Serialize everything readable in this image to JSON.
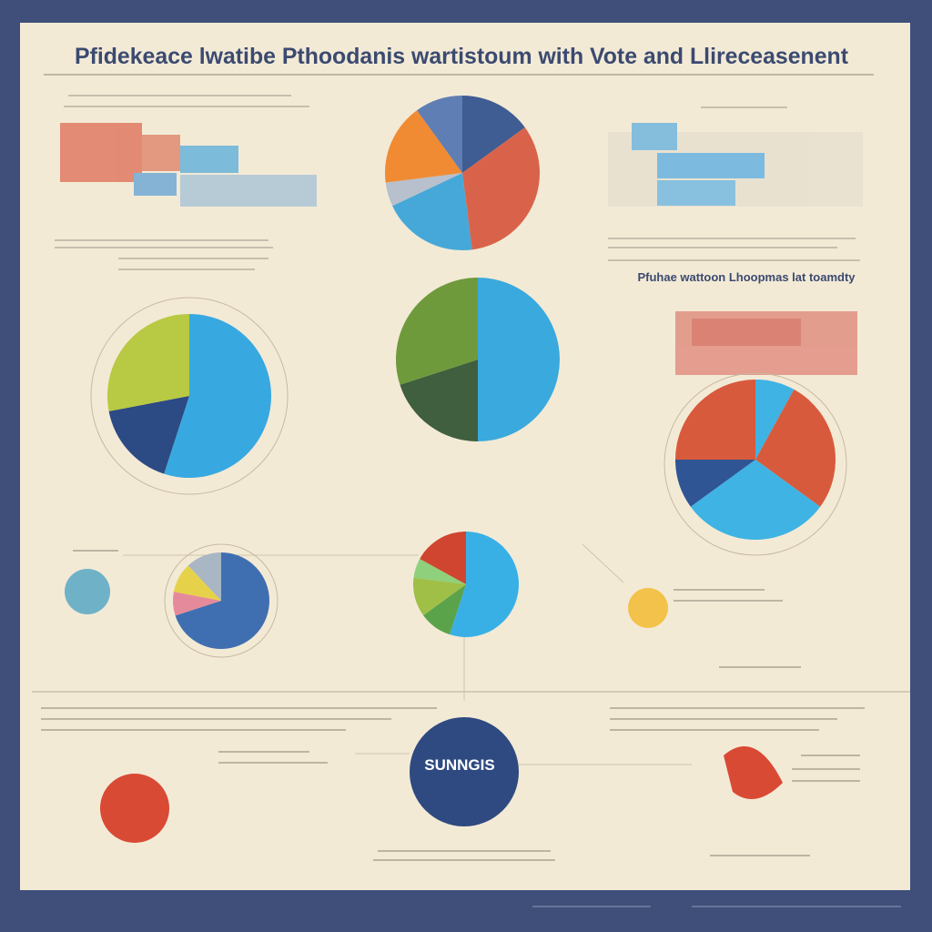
{
  "header": {
    "title": "Pfidekeace lwatibe Pthoodanis wartistoum with Vote and Llireceasenent"
  },
  "subheading": "Pfuhae wattoon Lhoopmas lat toamdty",
  "badge": "SUNNGIS",
  "pies": [
    {
      "values": [
        15,
        33,
        20,
        5,
        17,
        10
      ],
      "colors": [
        "#3f5c93",
        "#d9634a",
        "#45a8d8",
        "#b7c0cc",
        "#f08b33",
        "#5f7eb3"
      ]
    },
    {
      "values": [
        55,
        17,
        28
      ],
      "colors": [
        "#38a9e0",
        "#2c4a84",
        "#b8c943"
      ]
    },
    {
      "values": [
        50,
        20,
        30
      ],
      "colors": [
        "#3aa9dd",
        "#3f5f3e",
        "#6f9a3c"
      ]
    },
    {
      "values": [
        8,
        27,
        30,
        10,
        25
      ],
      "colors": [
        "#3fb3e3",
        "#d85a3c",
        "#3fb3e3",
        "#2f5595",
        "#d85a3c"
      ]
    },
    {
      "values": [
        55,
        10,
        12,
        6,
        17
      ],
      "colors": [
        "#38b0e6",
        "#5aa34b",
        "#9fbf47",
        "#8fd07c",
        "#d0452f"
      ]
    },
    {
      "values": [
        70,
        8,
        10,
        12
      ],
      "colors": [
        "#3f6fb0",
        "#e58a9a",
        "#e6d24a",
        "#a9b6c4"
      ]
    }
  ]
}
